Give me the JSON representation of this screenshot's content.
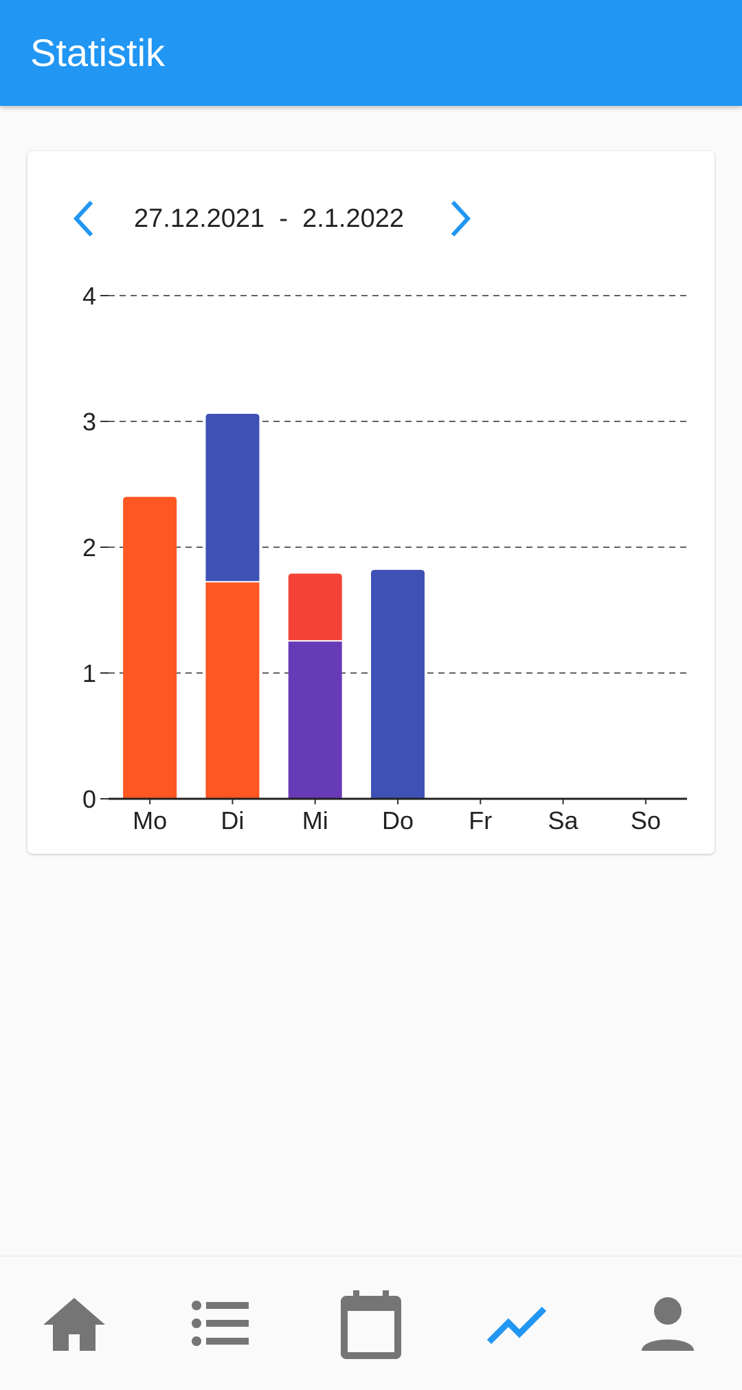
{
  "app_bar": {
    "title": "Statistik"
  },
  "week": {
    "start": "27.12.2021",
    "separator": "-",
    "end": "2.1.2022"
  },
  "chart_data": {
    "type": "bar",
    "stacked": true,
    "categories": [
      "Mo",
      "Di",
      "Mi",
      "Do",
      "Fr",
      "Sa",
      "So"
    ],
    "y_ticks": [
      "0",
      "1",
      "2",
      "3",
      "4"
    ],
    "ylim": [
      0,
      4
    ],
    "grid": "dashed horizontal",
    "series": [
      {
        "color": "#ff5722",
        "values": [
          2.4,
          1.72,
          0,
          0,
          0,
          0,
          0
        ]
      },
      {
        "color": "#673ab7",
        "values": [
          0,
          0,
          1.25,
          0,
          0,
          0,
          0
        ]
      },
      {
        "color": "#3f51b5",
        "values": [
          0,
          1.34,
          0,
          1.82,
          0,
          0,
          0
        ]
      },
      {
        "color": "#f44336",
        "values": [
          0,
          0,
          0.54,
          0,
          0,
          0,
          0
        ]
      }
    ]
  },
  "bottom_nav": {
    "items": [
      {
        "icon": "home-icon",
        "active": false
      },
      {
        "icon": "list-icon",
        "active": false
      },
      {
        "icon": "calendar-icon",
        "active": false
      },
      {
        "icon": "trending-up-icon",
        "active": true
      },
      {
        "icon": "person-icon",
        "active": false
      }
    ],
    "active_color": "#2196f3",
    "inactive_color": "#757575"
  }
}
